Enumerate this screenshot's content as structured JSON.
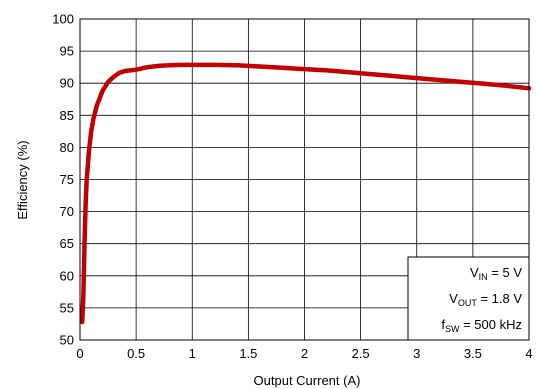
{
  "chart_data": {
    "type": "line",
    "xlabel": "Output Current (A)",
    "ylabel": "Efficiency (%)",
    "xlim": [
      0,
      4
    ],
    "ylim": [
      50,
      100
    ],
    "x_ticks": [
      "0",
      "0.5",
      "1",
      "1.5",
      "2",
      "2.5",
      "3",
      "3.5",
      "4"
    ],
    "y_ticks": [
      "50",
      "55",
      "60",
      "65",
      "70",
      "75",
      "80",
      "85",
      "90",
      "95",
      "100"
    ],
    "grid": true,
    "line_color": "#c00000",
    "series": [
      {
        "x": [
          0.02,
          0.03,
          0.04,
          0.05,
          0.06,
          0.08,
          0.1,
          0.12,
          0.15,
          0.2,
          0.25,
          0.3,
          0.35,
          0.4,
          0.45,
          0.5,
          0.6,
          0.7,
          0.8,
          0.9,
          1.0,
          1.2,
          1.4,
          1.6,
          1.8,
          2.0,
          2.2,
          2.4,
          2.6,
          2.8,
          3.0,
          3.2,
          3.4,
          3.6,
          3.8,
          4.0
        ],
        "y": [
          52.8,
          57.0,
          65.0,
          71.0,
          75.0,
          79.5,
          82.5,
          84.5,
          86.5,
          88.8,
          90.2,
          91.0,
          91.6,
          91.9,
          92.0,
          92.1,
          92.5,
          92.7,
          92.8,
          92.85,
          92.85,
          92.85,
          92.8,
          92.6,
          92.4,
          92.2,
          92.0,
          91.7,
          91.4,
          91.1,
          90.8,
          90.5,
          90.2,
          89.9,
          89.6,
          89.2
        ]
      }
    ]
  },
  "legend": {
    "vin": {
      "main": "V",
      "sub": "IN",
      "rest": " = 5 V"
    },
    "vout": {
      "main": "V",
      "sub": "OUT",
      "rest": " = 1.8 V"
    },
    "fsw": {
      "main": "f",
      "sub": "SW",
      "rest": " = 500 kHz"
    }
  }
}
